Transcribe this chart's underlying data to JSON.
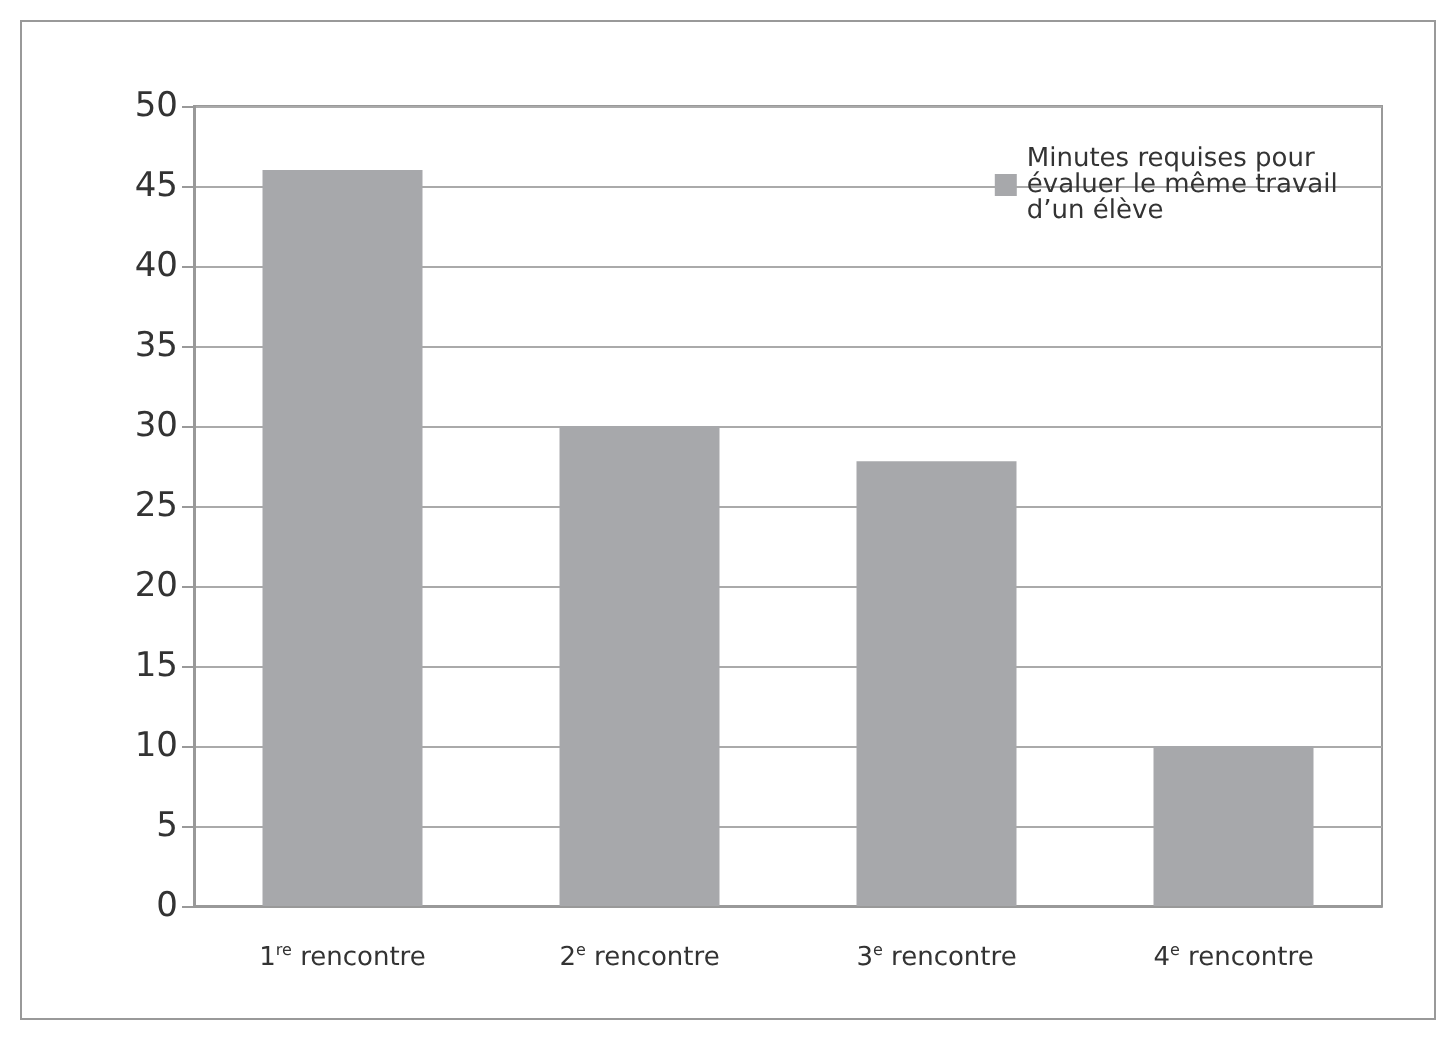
{
  "chart_data": {
    "type": "bar",
    "categories": [
      "1$^{re}$ rencontre",
      "2$^{e}$ rencontre",
      "3$^{e}$ rencontre",
      "4$^{e}$ rencontre"
    ],
    "series": [
      {
        "name": "Minutes requises pour évaluer le même travail d’un élève",
        "color": "#a7a8ab",
        "values": [
          46,
          30,
          27.8,
          10
        ]
      }
    ],
    "ylim": [
      0,
      50
    ],
    "yticks": [
      0,
      5,
      10,
      15,
      20,
      25,
      30,
      35,
      40,
      45,
      50
    ],
    "grid": "y",
    "legend": "top right"
  }
}
